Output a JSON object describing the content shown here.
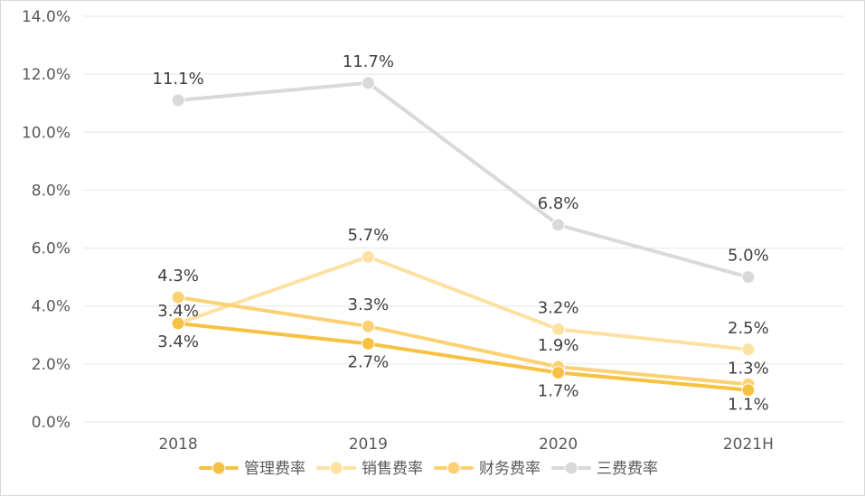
{
  "chart_data": {
    "type": "line",
    "categories": [
      "2018",
      "2019",
      "2020",
      "2021H"
    ],
    "ylim": [
      0,
      14
    ],
    "yticks": [
      "0.0%",
      "2.0%",
      "4.0%",
      "6.0%",
      "8.0%",
      "10.0%",
      "12.0%",
      "14.0%"
    ],
    "legend_position": "bottom",
    "grid": true,
    "series": [
      {
        "name": "管理费率",
        "color": "#f7c142",
        "values": [
          3.4,
          2.7,
          1.7,
          1.1
        ],
        "labels": [
          "3.4%",
          "2.7%",
          "1.7%",
          "1.1%"
        ]
      },
      {
        "name": "销售费率",
        "color": "#fde1a2",
        "values": [
          3.4,
          5.7,
          3.2,
          2.5
        ],
        "labels": [
          "3.4%",
          "5.7%",
          "3.2%",
          "2.5%"
        ]
      },
      {
        "name": "财务费率",
        "color": "#fbd174",
        "values": [
          4.3,
          3.3,
          1.9,
          1.3
        ],
        "labels": [
          "4.3%",
          "3.3%",
          "1.9%",
          "1.3%"
        ]
      },
      {
        "name": "三费费率",
        "color": "#d9d9d9",
        "values": [
          11.1,
          11.7,
          6.8,
          5.0
        ],
        "labels": [
          "11.1%",
          "11.7%",
          "6.8%",
          "5.0%"
        ]
      }
    ]
  }
}
